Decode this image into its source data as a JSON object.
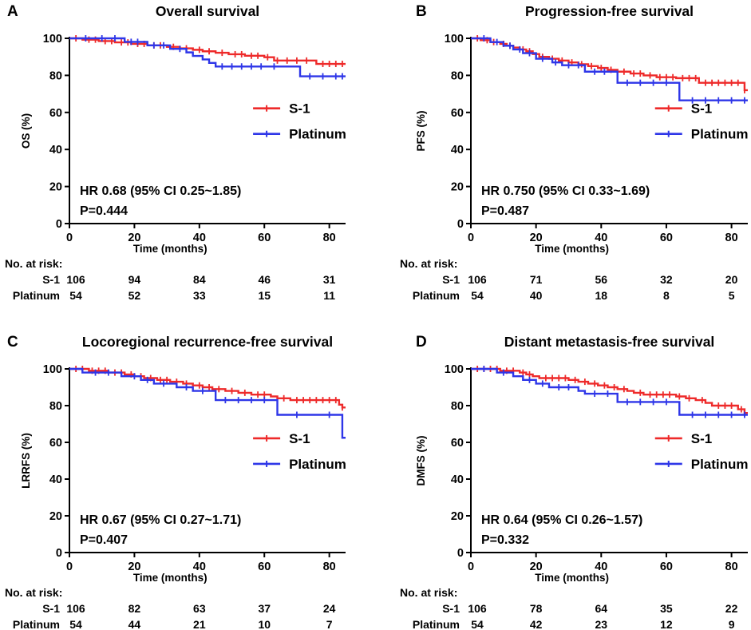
{
  "chart_data": [
    {
      "type": "line",
      "label": "A",
      "title": "Overall survival",
      "xlabel": "Time (months)",
      "ylabel": "OS (%)",
      "xlim": [
        0,
        85
      ],
      "ylim": [
        0,
        100
      ],
      "x_ticks": [
        0,
        20,
        40,
        60,
        80
      ],
      "y_ticks": [
        0,
        20,
        40,
        60,
        80,
        100
      ],
      "legend": [
        "S-1",
        "Platinum"
      ],
      "annotation": [
        "HR 0.68 (95% CI 0.25~1.85)",
        "P=0.444"
      ],
      "risk_title": "No. at risk:",
      "risk_times": [
        0,
        20,
        40,
        60,
        80
      ],
      "risk_rows": [
        {
          "name": "S-1",
          "values": [
            "106",
            "94",
            "84",
            "46",
            "31"
          ]
        },
        {
          "name": "Platinum",
          "values": [
            "54",
            "52",
            "33",
            "15",
            "11"
          ]
        }
      ],
      "series": [
        {
          "name": "S-1",
          "color": "#ee2a2a",
          "steps": [
            [
              0,
              100
            ],
            [
              4,
              99.3
            ],
            [
              9,
              98.5
            ],
            [
              14,
              97.8
            ],
            [
              19,
              97
            ],
            [
              24,
              96.2
            ],
            [
              30,
              95.4
            ],
            [
              34,
              94.6
            ],
            [
              38,
              93.8
            ],
            [
              41,
              93
            ],
            [
              45,
              92.2
            ],
            [
              49,
              91.4
            ],
            [
              54,
              90.6
            ],
            [
              60,
              89.8
            ],
            [
              63,
              88
            ],
            [
              76,
              86.2
            ],
            [
              85,
              86.2
            ]
          ],
          "censors": [
            2,
            6,
            8,
            11,
            13,
            16,
            18,
            21,
            23,
            26,
            28,
            32,
            36,
            40,
            43,
            47,
            51,
            53,
            56,
            58,
            61,
            64,
            67,
            70,
            73,
            78,
            80,
            82,
            84
          ]
        },
        {
          "name": "Platinum",
          "color": "#2e36e8",
          "steps": [
            [
              0,
              100
            ],
            [
              17,
              98.1
            ],
            [
              24,
              96.2
            ],
            [
              31,
              94.3
            ],
            [
              36,
              92.4
            ],
            [
              38,
              90.5
            ],
            [
              41,
              88.6
            ],
            [
              43,
              86.7
            ],
            [
              45,
              84.8
            ],
            [
              71,
              79.5
            ],
            [
              85,
              79.5
            ]
          ],
          "censors": [
            5,
            10,
            14,
            19,
            21,
            26,
            29,
            34,
            47,
            50,
            53,
            56,
            59,
            63,
            74,
            78,
            82,
            84
          ]
        }
      ]
    },
    {
      "type": "line",
      "label": "B",
      "title": "Progression-free survival",
      "xlabel": "Time (months)",
      "ylabel": "PFS (%)",
      "xlim": [
        0,
        85
      ],
      "ylim": [
        0,
        100
      ],
      "x_ticks": [
        0,
        20,
        40,
        60,
        80
      ],
      "y_ticks": [
        0,
        20,
        40,
        60,
        80,
        100
      ],
      "legend": [
        "S-1",
        "Platinum"
      ],
      "annotation": [
        "HR 0.750 (95% CI 0.33~1.69)",
        "P=0.487"
      ],
      "risk_title": "No. at risk:",
      "risk_times": [
        0,
        20,
        40,
        60,
        80
      ],
      "risk_rows": [
        {
          "name": "S-1",
          "values": [
            "106",
            "71",
            "56",
            "32",
            "20"
          ]
        },
        {
          "name": "Platinum",
          "values": [
            "54",
            "40",
            "18",
            "8",
            "5"
          ]
        }
      ],
      "series": [
        {
          "name": "S-1",
          "color": "#ee2a2a",
          "steps": [
            [
              0,
              100
            ],
            [
              3,
              99
            ],
            [
              6,
              98
            ],
            [
              9,
              97
            ],
            [
              11,
              96
            ],
            [
              13,
              95
            ],
            [
              15,
              94
            ],
            [
              17,
              93
            ],
            [
              19,
              91.5
            ],
            [
              21,
              90
            ],
            [
              24,
              89
            ],
            [
              27,
              88
            ],
            [
              30,
              87
            ],
            [
              33,
              86
            ],
            [
              36,
              85
            ],
            [
              39,
              84
            ],
            [
              42,
              83
            ],
            [
              45,
              82
            ],
            [
              49,
              81
            ],
            [
              53,
              80
            ],
            [
              57,
              79
            ],
            [
              63,
              78.5
            ],
            [
              70,
              76
            ],
            [
              84,
              72
            ],
            [
              85,
              72
            ]
          ],
          "censors": [
            2,
            5,
            7,
            10,
            12,
            16,
            18,
            22,
            25,
            28,
            31,
            34,
            37,
            40,
            43,
            47,
            50,
            52,
            55,
            58,
            60,
            62,
            65,
            67,
            69,
            72,
            74,
            76,
            78,
            80,
            82,
            84
          ]
        },
        {
          "name": "Platinum",
          "color": "#2e36e8",
          "steps": [
            [
              0,
              100
            ],
            [
              6,
              98
            ],
            [
              10,
              96
            ],
            [
              13,
              94
            ],
            [
              16,
              92
            ],
            [
              20,
              89
            ],
            [
              25,
              87
            ],
            [
              28,
              85.5
            ],
            [
              35,
              82
            ],
            [
              45,
              76
            ],
            [
              64,
              66.5
            ],
            [
              85,
              66.5
            ]
          ],
          "censors": [
            4,
            8,
            12,
            15,
            18,
            22,
            26,
            30,
            33,
            38,
            41,
            48,
            52,
            56,
            60,
            68,
            72,
            76,
            80,
            84
          ]
        }
      ]
    },
    {
      "type": "line",
      "label": "C",
      "title": "Locoregional recurrence-free survival",
      "xlabel": "Time (months)",
      "ylabel": "LRRFS (%)",
      "xlim": [
        0,
        85
      ],
      "ylim": [
        0,
        100
      ],
      "x_ticks": [
        0,
        20,
        40,
        60,
        80
      ],
      "y_ticks": [
        0,
        20,
        40,
        60,
        80,
        100
      ],
      "legend": [
        "S-1",
        "Platinum"
      ],
      "annotation": [
        "HR 0.67 (95% CI 0.27~1.71)",
        "P=0.407"
      ],
      "risk_title": "No. at risk:",
      "risk_times": [
        0,
        20,
        40,
        60,
        80
      ],
      "risk_rows": [
        {
          "name": "S-1",
          "values": [
            "106",
            "82",
            "63",
            "37",
            "24"
          ]
        },
        {
          "name": "Platinum",
          "values": [
            "54",
            "44",
            "21",
            "10",
            "7"
          ]
        }
      ],
      "series": [
        {
          "name": "S-1",
          "color": "#ee2a2a",
          "steps": [
            [
              0,
              100
            ],
            [
              6,
              99
            ],
            [
              12,
              98
            ],
            [
              17,
              97
            ],
            [
              20,
              96
            ],
            [
              23,
              95
            ],
            [
              27,
              94
            ],
            [
              31,
              93
            ],
            [
              35,
              92
            ],
            [
              38,
              91
            ],
            [
              41,
              90
            ],
            [
              44,
              89
            ],
            [
              48,
              88
            ],
            [
              52,
              87
            ],
            [
              56,
              86
            ],
            [
              62,
              85
            ],
            [
              64,
              84
            ],
            [
              68,
              83
            ],
            [
              83,
              80.5
            ],
            [
              84,
              79
            ],
            [
              85,
              79
            ]
          ],
          "censors": [
            2,
            4,
            7,
            9,
            11,
            14,
            16,
            19,
            22,
            25,
            28,
            30,
            33,
            36,
            40,
            43,
            46,
            50,
            54,
            58,
            60,
            66,
            70,
            72,
            74,
            76,
            78,
            80,
            82,
            84
          ]
        },
        {
          "name": "Platinum",
          "color": "#2e36e8",
          "steps": [
            [
              0,
              100
            ],
            [
              4,
              98
            ],
            [
              16,
              96
            ],
            [
              22,
              94
            ],
            [
              26,
              92
            ],
            [
              33,
              90
            ],
            [
              38,
              88
            ],
            [
              45,
              83
            ],
            [
              64,
              75
            ],
            [
              84,
              62.5
            ],
            [
              85,
              62.5
            ]
          ],
          "censors": [
            8,
            12,
            20,
            24,
            29,
            36,
            41,
            48,
            52,
            56,
            60,
            70,
            80
          ]
        }
      ]
    },
    {
      "type": "line",
      "label": "D",
      "title": "Distant metastasis-free survival",
      "xlabel": "Time (months)",
      "ylabel": "DMFS (%)",
      "xlim": [
        0,
        85
      ],
      "ylim": [
        0,
        100
      ],
      "x_ticks": [
        0,
        20,
        40,
        60,
        80
      ],
      "y_ticks": [
        0,
        20,
        40,
        60,
        80,
        100
      ],
      "legend": [
        "S-1",
        "Platinum"
      ],
      "annotation": [
        "HR 0.64 (95% CI 0.26~1.57)",
        "P=0.332"
      ],
      "risk_title": "No. at risk:",
      "risk_times": [
        0,
        20,
        40,
        60,
        80
      ],
      "risk_rows": [
        {
          "name": "S-1",
          "values": [
            "106",
            "78",
            "64",
            "35",
            "22"
          ]
        },
        {
          "name": "Platinum",
          "values": [
            "54",
            "42",
            "23",
            "12",
            "9"
          ]
        }
      ],
      "series": [
        {
          "name": "S-1",
          "color": "#ee2a2a",
          "steps": [
            [
              0,
              100
            ],
            [
              9,
              99
            ],
            [
              15,
              98
            ],
            [
              17,
              97
            ],
            [
              19,
              96
            ],
            [
              21,
              95
            ],
            [
              30,
              94
            ],
            [
              33,
              93
            ],
            [
              36,
              92
            ],
            [
              39,
              91
            ],
            [
              42,
              90
            ],
            [
              45,
              89
            ],
            [
              48,
              88
            ],
            [
              50,
              87
            ],
            [
              53,
              86
            ],
            [
              63,
              85
            ],
            [
              66,
              84
            ],
            [
              69,
              83
            ],
            [
              72,
              81.5
            ],
            [
              74,
              80
            ],
            [
              82,
              78
            ],
            [
              84,
              76
            ],
            [
              85,
              76
            ]
          ],
          "censors": [
            2,
            4,
            6,
            8,
            11,
            13,
            16,
            18,
            23,
            25,
            27,
            29,
            32,
            35,
            38,
            41,
            44,
            47,
            52,
            55,
            57,
            59,
            61,
            64,
            67,
            71,
            76,
            78,
            80,
            83,
            84
          ]
        },
        {
          "name": "Platinum",
          "color": "#2e36e8",
          "steps": [
            [
              0,
              100
            ],
            [
              8,
              98
            ],
            [
              13,
              96
            ],
            [
              16,
              94
            ],
            [
              20,
              92
            ],
            [
              24,
              90
            ],
            [
              33,
              88
            ],
            [
              35,
              86.5
            ],
            [
              45,
              82
            ],
            [
              64,
              75
            ],
            [
              85,
              75
            ]
          ],
          "censors": [
            4,
            10,
            18,
            22,
            27,
            30,
            38,
            42,
            48,
            52,
            56,
            60,
            68,
            72,
            76,
            80,
            84
          ]
        }
      ]
    }
  ]
}
